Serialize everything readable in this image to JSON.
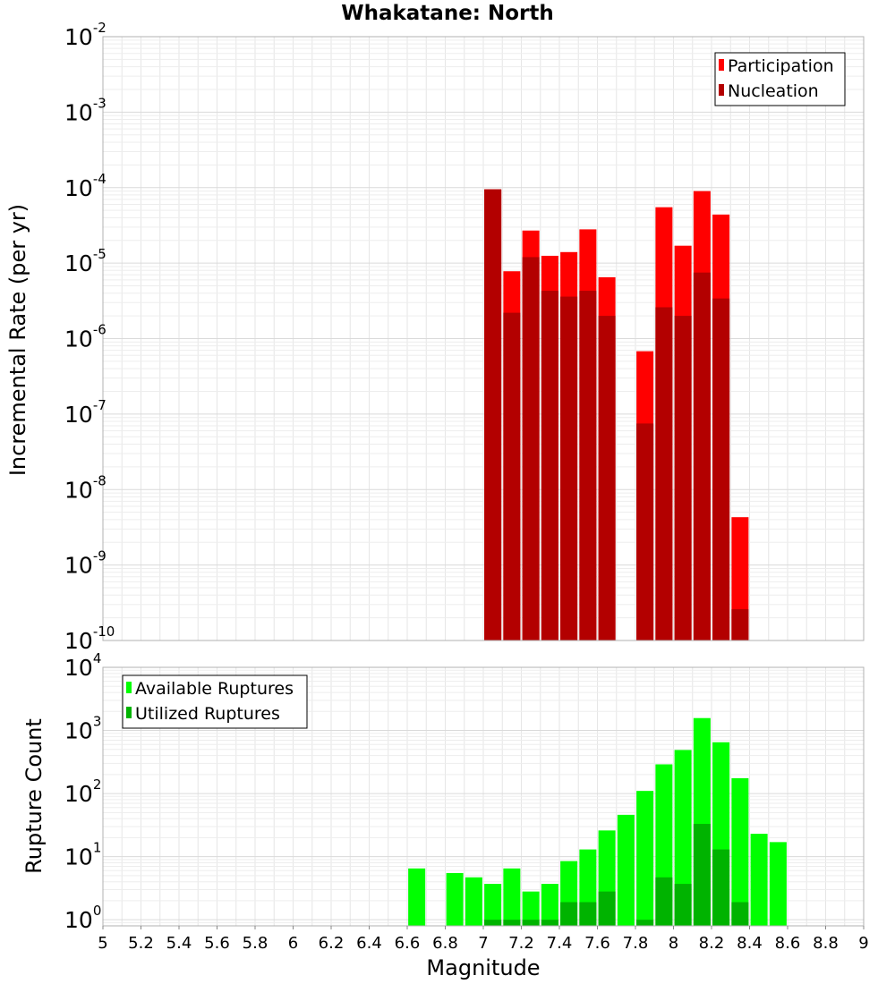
{
  "chart_data": [
    {
      "type": "bar",
      "title": "Whakatane: North",
      "ylabel": "Incremental Rate (per yr)",
      "xlabel": "",
      "y_scale": "log",
      "ylim": [
        1e-10,
        0.01
      ],
      "xlim": [
        5,
        9
      ],
      "y_tick_labels": [
        {
          "base": "10",
          "exp": "-10"
        },
        {
          "base": "10",
          "exp": "-9"
        },
        {
          "base": "10",
          "exp": "-8"
        },
        {
          "base": "10",
          "exp": "-7"
        },
        {
          "base": "10",
          "exp": "-6"
        },
        {
          "base": "10",
          "exp": "-5"
        },
        {
          "base": "10",
          "exp": "-4"
        },
        {
          "base": "10",
          "exp": "-3"
        },
        {
          "base": "10",
          "exp": "-2"
        }
      ],
      "legend": {
        "position": "top-right",
        "entries": [
          "Participation",
          "Nucleation"
        ]
      },
      "colors": {
        "Participation": "#ff0000",
        "Nucleation": "#b30000"
      },
      "grid": true,
      "series": [
        {
          "name": "Participation",
          "x": [
            7.05,
            7.15,
            7.25,
            7.35,
            7.45,
            7.55,
            7.65,
            7.85,
            7.95,
            8.05,
            8.15,
            8.25,
            8.35
          ],
          "values": [
            9.5e-05,
            7.8e-06,
            2.7e-05,
            1.25e-05,
            1.4e-05,
            2.8e-05,
            6.5e-06,
            6.8e-07,
            5.5e-05,
            1.7e-05,
            9e-05,
            4.4e-05,
            4.3e-09
          ]
        },
        {
          "name": "Nucleation",
          "x": [
            7.05,
            7.15,
            7.25,
            7.35,
            7.45,
            7.55,
            7.65,
            7.85,
            7.95,
            8.05,
            8.15,
            8.25,
            8.35
          ],
          "values": [
            9.5e-05,
            2.2e-06,
            1.2e-05,
            4.3e-06,
            3.6e-06,
            4.3e-06,
            2e-06,
            7.5e-08,
            2.6e-06,
            2e-06,
            7.5e-06,
            3.4e-06,
            2.6e-10
          ]
        }
      ]
    },
    {
      "type": "bar",
      "title": "",
      "ylabel": "Rupture Count",
      "xlabel": "Magnitude",
      "y_scale": "log",
      "ylim": [
        0.8,
        10000
      ],
      "xlim": [
        5,
        9
      ],
      "x_tick_labels": [
        "5",
        "5.2",
        "5.4",
        "5.6",
        "5.8",
        "6",
        "6.2",
        "6.4",
        "6.6",
        "6.8",
        "7",
        "7.2",
        "7.4",
        "7.6",
        "7.8",
        "8",
        "8.2",
        "8.4",
        "8.6",
        "8.8",
        "9"
      ],
      "y_tick_labels": [
        {
          "base": "10",
          "exp": "0"
        },
        {
          "base": "10",
          "exp": "1"
        },
        {
          "base": "10",
          "exp": "2"
        },
        {
          "base": "10",
          "exp": "3"
        },
        {
          "base": "10",
          "exp": "4"
        }
      ],
      "legend": {
        "position": "top-left",
        "entries": [
          "Available Ruptures",
          "Utilized Ruptures"
        ]
      },
      "colors": {
        "Available Ruptures": "#00ff00",
        "Utilized Ruptures": "#00b300"
      },
      "grid": true,
      "series": [
        {
          "name": "Available Ruptures",
          "x": [
            6.65,
            6.85,
            6.95,
            7.05,
            7.15,
            7.25,
            7.35,
            7.45,
            7.55,
            7.65,
            7.75,
            7.85,
            7.95,
            8.05,
            8.15,
            8.25,
            8.35,
            8.45,
            8.55
          ],
          "values": [
            6.5,
            5.5,
            4.7,
            3.7,
            6.5,
            2.8,
            3.7,
            8.5,
            13,
            26,
            46,
            110,
            290,
            490,
            1570,
            650,
            175,
            23,
            17
          ]
        },
        {
          "name": "Utilized Ruptures",
          "x": [
            7.05,
            7.15,
            7.25,
            7.35,
            7.45,
            7.55,
            7.65,
            7.85,
            7.95,
            8.05,
            8.15,
            8.25,
            8.35
          ],
          "values": [
            1,
            1,
            1,
            1,
            1.9,
            1.9,
            2.8,
            1,
            4.7,
            3.7,
            33,
            13,
            1.9
          ]
        }
      ]
    }
  ]
}
